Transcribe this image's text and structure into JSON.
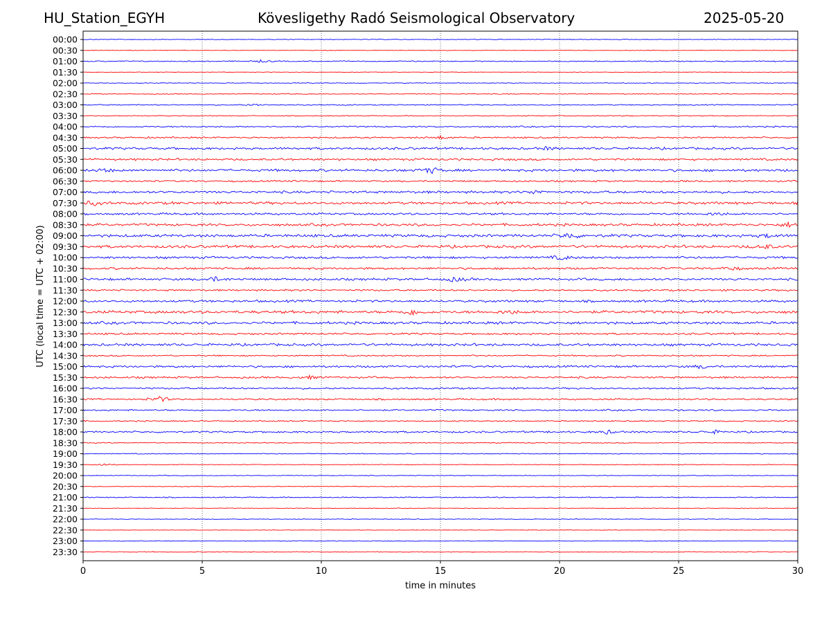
{
  "header": {
    "station": "HU_Station_EGYH",
    "observatory": "Kövesligethy Radó Seismological Observatory",
    "date": "2025-05-20"
  },
  "chart_data": {
    "type": "line",
    "title": "Kövesligethy Radó Seismological Observatory",
    "xlabel": "time in minutes",
    "ylabel": "UTC (local time = UTC + 02:00)",
    "xlim": [
      0,
      30
    ],
    "xticks": [
      0,
      5,
      10,
      15,
      20,
      25,
      30
    ],
    "grid": "vertical dotted lines at 5-minute ticks",
    "row_labels": [
      "00:00",
      "00:30",
      "01:00",
      "01:30",
      "02:00",
      "02:30",
      "03:00",
      "03:30",
      "04:00",
      "04:30",
      "05:00",
      "05:30",
      "06:00",
      "06:30",
      "07:00",
      "07:30",
      "08:00",
      "08:30",
      "09:00",
      "09:30",
      "10:00",
      "10:30",
      "11:00",
      "11:30",
      "12:00",
      "12:30",
      "13:00",
      "13:30",
      "14:00",
      "14:30",
      "15:00",
      "15:30",
      "16:00",
      "16:30",
      "17:00",
      "17:30",
      "18:00",
      "18:30",
      "19:00",
      "19:30",
      "20:00",
      "20:30",
      "21:00",
      "21:30",
      "22:00",
      "22:30",
      "23:00",
      "23:30"
    ],
    "colors": [
      "#0000ff",
      "#ff0000"
    ],
    "noise_level": [
      0.4,
      0.3,
      0.6,
      0.3,
      0.4,
      0.5,
      0.6,
      0.5,
      0.8,
      0.9,
      1.3,
      1.2,
      1.4,
      1.0,
      1.4,
      1.5,
      1.2,
      1.4,
      1.6,
      1.6,
      1.3,
      1.2,
      1.3,
      1.0,
      1.3,
      1.6,
      1.5,
      1.1,
      1.4,
      0.8,
      1.2,
      1.1,
      1.0,
      1.0,
      0.9,
      0.7,
      1.0,
      0.5,
      0.5,
      0.4,
      0.4,
      0.4,
      0.6,
      0.3,
      0.4,
      0.3,
      0.4,
      0.4
    ],
    "events": [
      {
        "row": 2,
        "minute": 7.5,
        "amp": 1.5
      },
      {
        "row": 6,
        "minute": 7.2,
        "amp": 1.5
      },
      {
        "row": 9,
        "minute": 15.0,
        "amp": 2.0
      },
      {
        "row": 10,
        "minute": 19.5,
        "amp": 1.8
      },
      {
        "row": 12,
        "minute": 14.6,
        "amp": 4.0
      },
      {
        "row": 12,
        "minute": 0.9,
        "amp": 2.0
      },
      {
        "row": 14,
        "minute": 19.0,
        "amp": 2.5
      },
      {
        "row": 15,
        "minute": 0.4,
        "amp": 3.0
      },
      {
        "row": 16,
        "minute": 26.6,
        "amp": 2.5
      },
      {
        "row": 17,
        "minute": 29.6,
        "amp": 2.5
      },
      {
        "row": 18,
        "minute": 20.4,
        "amp": 4.0
      },
      {
        "row": 18,
        "minute": 28.8,
        "amp": 2.5
      },
      {
        "row": 19,
        "minute": 28.6,
        "amp": 3.0
      },
      {
        "row": 20,
        "minute": 20.1,
        "amp": 3.0
      },
      {
        "row": 21,
        "minute": 27.2,
        "amp": 2.5
      },
      {
        "row": 22,
        "minute": 5.5,
        "amp": 3.0
      },
      {
        "row": 22,
        "minute": 15.6,
        "amp": 3.0
      },
      {
        "row": 25,
        "minute": 13.9,
        "amp": 4.0
      },
      {
        "row": 25,
        "minute": 17.9,
        "amp": 2.5
      },
      {
        "row": 30,
        "minute": 26.0,
        "amp": 2.5
      },
      {
        "row": 31,
        "minute": 9.5,
        "amp": 2.0
      },
      {
        "row": 33,
        "minute": 3.2,
        "amp": 3.5
      },
      {
        "row": 36,
        "minute": 22.0,
        "amp": 2.5
      },
      {
        "row": 36,
        "minute": 26.5,
        "amp": 2.0
      },
      {
        "row": 39,
        "minute": 0.8,
        "amp": 2.0
      }
    ]
  }
}
